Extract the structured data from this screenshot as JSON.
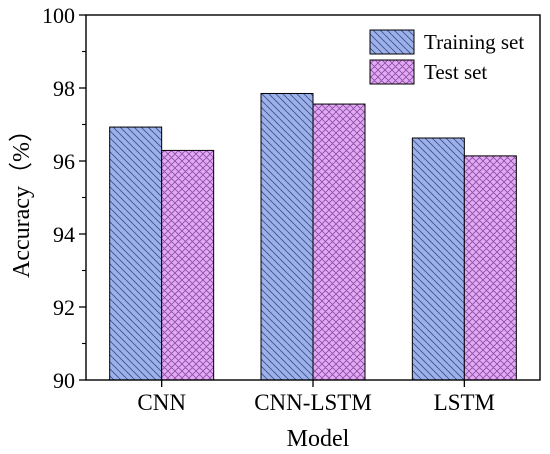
{
  "chart_data": {
    "type": "bar",
    "xlabel": "Model",
    "ylabel": "Accuracy（%）",
    "categories": [
      "CNN",
      "CNN-LSTM",
      "LSTM"
    ],
    "series": [
      {
        "name": "Training set",
        "values": [
          96.93,
          97.85,
          96.63
        ],
        "color": "#9db1e6",
        "hatch": "diagonal-back"
      },
      {
        "name": "Test set",
        "values": [
          96.29,
          97.56,
          96.14
        ],
        "color": "#e2aaf2",
        "hatch": "crosshatch"
      }
    ],
    "ylim": [
      90,
      100
    ],
    "yticks": [
      90,
      92,
      94,
      96,
      98,
      100
    ],
    "grid": false,
    "legend_position": "top-right"
  }
}
